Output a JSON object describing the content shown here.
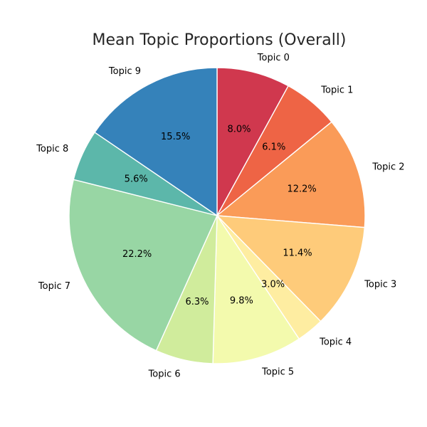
{
  "chart_data": {
    "type": "pie",
    "title": "Mean Topic Proportions (Overall)",
    "start_angle_deg": 90,
    "direction": "clockwise",
    "slices": [
      {
        "label": "Topic 0",
        "value": 8.0,
        "pct_label": "8.0%",
        "color": "#d0384e"
      },
      {
        "label": "Topic 1",
        "value": 6.1,
        "pct_label": "6.1%",
        "color": "#ee6445"
      },
      {
        "label": "Topic 2",
        "value": 12.2,
        "pct_label": "12.2%",
        "color": "#fa9b58"
      },
      {
        "label": "Topic 3",
        "value": 11.4,
        "pct_label": "11.4%",
        "color": "#fecb7a"
      },
      {
        "label": "Topic 4",
        "value": 3.0,
        "pct_label": "3.0%",
        "color": "#feeda1"
      },
      {
        "label": "Topic 5",
        "value": 9.8,
        "pct_label": "9.8%",
        "color": "#f3faad"
      },
      {
        "label": "Topic 6",
        "value": 6.3,
        "pct_label": "6.3%",
        "color": "#d0ec9c"
      },
      {
        "label": "Topic 7",
        "value": 22.2,
        "pct_label": "22.2%",
        "color": "#98d6a4"
      },
      {
        "label": "Topic 8",
        "value": 5.6,
        "pct_label": "5.6%",
        "color": "#5cb7aa"
      },
      {
        "label": "Topic 9",
        "value": 15.5,
        "pct_label": "15.5%",
        "color": "#3582ba"
      }
    ]
  }
}
